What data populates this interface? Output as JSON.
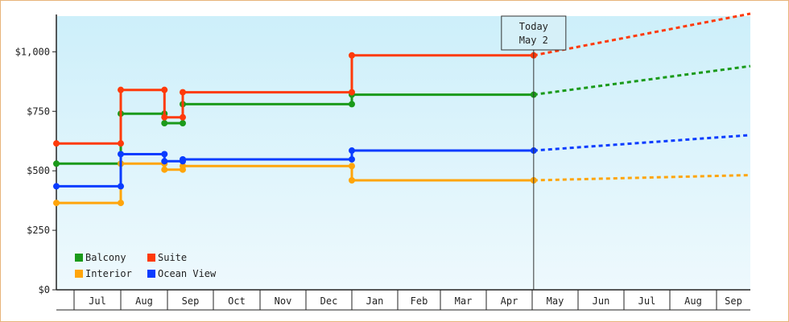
{
  "chart_data": {
    "type": "line",
    "step": true,
    "x_axis": {
      "type": "date",
      "month_labels": [
        "Jul",
        "Aug",
        "Sep",
        "Oct",
        "Nov",
        "Dec",
        "Jan",
        "Feb",
        "Mar",
        "Apr",
        "May",
        "Jun",
        "Jul",
        "Aug",
        "Sep"
      ]
    },
    "y_axis": {
      "min": 0,
      "max": 1150,
      "ticks": [
        0,
        250,
        500,
        750,
        1000
      ],
      "tick_labels": [
        "$0",
        "$250",
        "$500",
        "$750",
        "$1,000"
      ]
    },
    "today": {
      "label": "Today",
      "date_label": "May 2",
      "date": "2025-05-02"
    },
    "background": {
      "top": "#cdeffa",
      "bottom": "#eef9fd"
    },
    "legend": {
      "placement": "bottom-left"
    },
    "series": [
      {
        "name": "Balcony",
        "color": "#1a9a1a",
        "points": [
          [
            "2024-06-01",
            530
          ],
          [
            "2024-08-01",
            530
          ],
          [
            "2024-08-01",
            740
          ],
          [
            "2024-08-30",
            740
          ],
          [
            "2024-08-30",
            700
          ],
          [
            "2024-09-11",
            700
          ],
          [
            "2024-09-11",
            780
          ],
          [
            "2025-01-01",
            780
          ],
          [
            "2025-01-01",
            820
          ],
          [
            "2025-05-02",
            820
          ]
        ],
        "forecast": [
          [
            "2025-05-02",
            820
          ],
          [
            "2025-10-01",
            940
          ]
        ]
      },
      {
        "name": "Suite",
        "color": "#ff3a0a",
        "points": [
          [
            "2024-06-01",
            615
          ],
          [
            "2024-08-01",
            615
          ],
          [
            "2024-08-01",
            840
          ],
          [
            "2024-08-30",
            840
          ],
          [
            "2024-08-30",
            725
          ],
          [
            "2024-09-11",
            725
          ],
          [
            "2024-09-11",
            830
          ],
          [
            "2025-01-01",
            830
          ],
          [
            "2025-01-01",
            985
          ],
          [
            "2025-05-02",
            985
          ]
        ],
        "forecast": [
          [
            "2025-05-02",
            985
          ],
          [
            "2025-10-01",
            1160
          ]
        ]
      },
      {
        "name": "Interior",
        "color": "#ffa50a",
        "points": [
          [
            "2024-06-01",
            365
          ],
          [
            "2024-08-01",
            365
          ],
          [
            "2024-08-01",
            530
          ],
          [
            "2024-08-30",
            530
          ],
          [
            "2024-08-30",
            505
          ],
          [
            "2024-09-11",
            505
          ],
          [
            "2024-09-11",
            520
          ],
          [
            "2025-01-01",
            520
          ],
          [
            "2025-01-01",
            460
          ],
          [
            "2025-05-02",
            460
          ]
        ],
        "forecast": [
          [
            "2025-05-02",
            460
          ],
          [
            "2025-10-01",
            482
          ]
        ]
      },
      {
        "name": "Ocean View",
        "color": "#0a3cff",
        "points": [
          [
            "2024-06-01",
            435
          ],
          [
            "2024-08-01",
            435
          ],
          [
            "2024-08-01",
            570
          ],
          [
            "2024-08-30",
            570
          ],
          [
            "2024-08-30",
            540
          ],
          [
            "2024-09-11",
            540
          ],
          [
            "2024-09-11",
            548
          ],
          [
            "2025-01-01",
            548
          ],
          [
            "2025-01-01",
            585
          ],
          [
            "2025-05-02",
            585
          ]
        ],
        "forecast": [
          [
            "2025-05-02",
            585
          ],
          [
            "2025-10-01",
            650
          ]
        ]
      }
    ]
  }
}
